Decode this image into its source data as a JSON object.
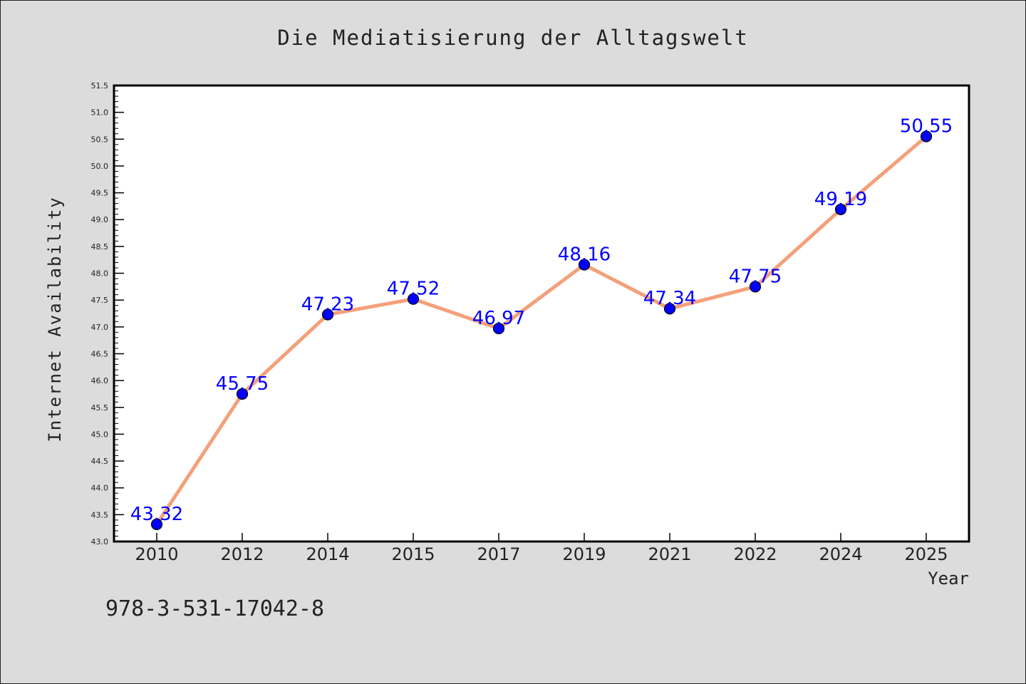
{
  "footer": {
    "isbn": "978-3-531-17042-8"
  },
  "colors": {
    "background": "#dcdcdc",
    "plot_bg": "#ffffff",
    "line": "#f4a07a",
    "marker": "#0000ff",
    "label": "#0000ff",
    "text": "#222222"
  },
  "chart_data": {
    "type": "line",
    "title": "Die Mediatisierung der Alltagswelt",
    "xlabel": "Year",
    "ylabel": "Internet Availability",
    "categories": [
      "2010",
      "2012",
      "2014",
      "2015",
      "2017",
      "2019",
      "2021",
      "2022",
      "2024",
      "2025"
    ],
    "series": [
      {
        "values": [
          43.32,
          45.75,
          47.23,
          47.52,
          46.97,
          48.16,
          47.34,
          47.75,
          49.19,
          50.55
        ],
        "labels": [
          "43.32",
          "45.75",
          "47.23",
          "47.52",
          "46.97",
          "48.16",
          "47.34",
          "47.75",
          "49.19",
          "50.55"
        ]
      }
    ],
    "ylim": [
      43.0,
      51.5
    ],
    "yticks": [
      "43.0",
      "43.5",
      "44.0",
      "44.5",
      "45.0",
      "45.5",
      "46.0",
      "46.5",
      "47.0",
      "47.5",
      "48.0",
      "48.5",
      "49.0",
      "49.5",
      "50.0",
      "50.5",
      "51.0",
      "51.5"
    ],
    "grid": false,
    "legend": "none"
  }
}
